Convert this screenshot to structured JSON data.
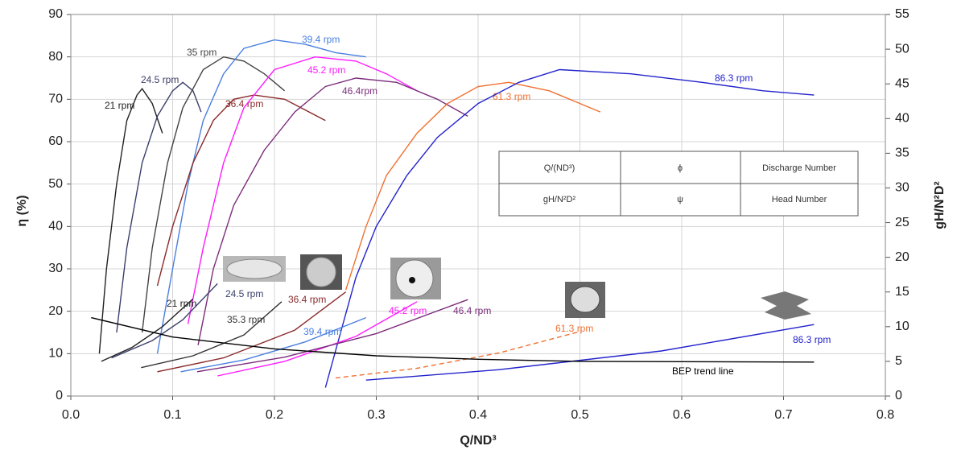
{
  "chart_data": {
    "type": "line",
    "xlabel": "Q/ND³",
    "ylabel": "η (%)",
    "y2label": "gH/N²D²",
    "xlim": [
      0,
      0.8
    ],
    "xticks": [
      {
        "value": 0,
        "label": "0.0"
      },
      0.1,
      0.2,
      0.3,
      0.4,
      0.5,
      0.6,
      0.7,
      0.8
    ],
    "ylim": [
      0,
      90
    ],
    "yticks": [
      0,
      10,
      20,
      30,
      40,
      50,
      60,
      70,
      80,
      90
    ],
    "y2lim": [
      0,
      55
    ],
    "y2ticks": [
      0,
      5,
      10,
      15,
      20,
      25,
      30,
      35,
      40,
      45,
      50,
      55
    ],
    "grid": true,
    "series": [
      {
        "name": "21 rpm",
        "color": "#222222",
        "axis": "y",
        "x": [
          0.028,
          0.035,
          0.045,
          0.055,
          0.065,
          0.07,
          0.08,
          0.09
        ],
        "values": [
          10,
          30,
          50,
          65,
          71,
          72.5,
          69,
          62
        ]
      },
      {
        "name": "24.5  rpm",
        "color": "#3a3f6a",
        "axis": "y",
        "x": [
          0.045,
          0.055,
          0.07,
          0.085,
          0.1,
          0.11,
          0.12,
          0.128
        ],
        "values": [
          15,
          35,
          55,
          66,
          72,
          74,
          72,
          67
        ]
      },
      {
        "name": "35 rpm",
        "color": "#444444",
        "axis": "y",
        "x": [
          0.07,
          0.08,
          0.095,
          0.11,
          0.13,
          0.15,
          0.17,
          0.19,
          0.21
        ],
        "values": [
          15,
          35,
          55,
          68,
          77,
          80,
          79,
          76,
          72
        ]
      },
      {
        "name": "39.4  rpm",
        "color": "#4a7fe0",
        "axis": "y",
        "x": [
          0.085,
          0.1,
          0.115,
          0.13,
          0.15,
          0.17,
          0.2,
          0.23,
          0.26,
          0.29
        ],
        "values": [
          10,
          30,
          50,
          65,
          76,
          82,
          84,
          83,
          81,
          80
        ]
      },
      {
        "name": "36.4  rpm",
        "color": "#8b2a2a",
        "axis": "y",
        "x": [
          0.085,
          0.1,
          0.12,
          0.14,
          0.16,
          0.18,
          0.21,
          0.25
        ],
        "values": [
          26,
          40,
          55,
          65,
          70,
          71,
          70,
          65
        ]
      },
      {
        "name": "45.2 rpm",
        "color": "#ff1aff",
        "axis": "y",
        "x": [
          0.115,
          0.13,
          0.15,
          0.17,
          0.2,
          0.24,
          0.28,
          0.31,
          0.34
        ],
        "values": [
          17,
          35,
          55,
          68,
          77,
          80,
          79,
          76,
          72
        ]
      },
      {
        "name": "46.4rpm",
        "color": "#7b2d7b",
        "axis": "y",
        "x": [
          0.125,
          0.14,
          0.16,
          0.19,
          0.22,
          0.25,
          0.28,
          0.32,
          0.36,
          0.39
        ],
        "values": [
          12,
          30,
          45,
          58,
          67,
          73,
          75,
          74,
          70,
          66
        ]
      },
      {
        "name": "61.3 rpm",
        "color": "#f07030",
        "axis": "y",
        "x": [
          0.27,
          0.29,
          0.31,
          0.34,
          0.37,
          0.4,
          0.43,
          0.47,
          0.52
        ],
        "values": [
          25,
          40,
          52,
          62,
          69,
          73,
          74,
          72,
          67
        ]
      },
      {
        "name": "86.3 rpm",
        "color": "#2222cc",
        "axis": "y",
        "x": [
          0.25,
          0.265,
          0.28,
          0.3,
          0.33,
          0.36,
          0.4,
          0.44,
          0.48,
          0.55,
          0.62,
          0.68,
          0.73
        ],
        "values": [
          2,
          15,
          28,
          40,
          52,
          61,
          69,
          74,
          77,
          76,
          74,
          72,
          71
        ]
      },
      {
        "name": "21 rpm",
        "color": "#222222",
        "axis": "y2",
        "x": [
          0.03,
          0.06,
          0.09,
          0.12
        ],
        "values": [
          5,
          7,
          10,
          14
        ]
      },
      {
        "name": "24.5 rpm",
        "color": "#3a3f6a",
        "axis": "y2",
        "x": [
          0.04,
          0.08,
          0.11,
          0.144
        ],
        "values": [
          5.5,
          8,
          11,
          16.2
        ]
      },
      {
        "name": "35.3 rpm",
        "color": "#333333",
        "axis": "y2",
        "x": [
          0.069,
          0.12,
          0.17,
          0.207
        ],
        "values": [
          4.1,
          5.8,
          8.8,
          13.6
        ]
      },
      {
        "name": "36.4 rpm",
        "color": "#8b2a2a",
        "axis": "y2",
        "x": [
          0.085,
          0.15,
          0.22,
          0.27
        ],
        "values": [
          3.5,
          5.5,
          9.5,
          15
        ]
      },
      {
        "name": "39.4  rpm",
        "color": "#4a7fe0",
        "axis": "y2",
        "x": [
          0.108,
          0.17,
          0.23,
          0.29
        ],
        "values": [
          3.5,
          5.2,
          7.8,
          11.3
        ]
      },
      {
        "name": "45.2 rpm",
        "color": "#ff1aff",
        "axis": "y2",
        "x": [
          0.144,
          0.21,
          0.28,
          0.34
        ],
        "values": [
          2.9,
          5,
          8.6,
          13.6
        ]
      },
      {
        "name": "46.4 rpm",
        "color": "#7b2d7b",
        "axis": "y2",
        "x": [
          0.124,
          0.21,
          0.3,
          0.39
        ],
        "values": [
          3.5,
          5.6,
          9,
          13.9
        ]
      },
      {
        "name": "61.3 rpm",
        "color": "#f07030",
        "axis": "y2",
        "dashed": true,
        "x": [
          0.26,
          0.34,
          0.42,
          0.5
        ],
        "values": [
          2.6,
          4,
          6.2,
          9.3
        ]
      },
      {
        "name": "86.3 rpm",
        "color": "#2222cc",
        "axis": "y2",
        "x": [
          0.29,
          0.42,
          0.58,
          0.73
        ],
        "values": [
          2.3,
          3.8,
          6.5,
          10.3
        ]
      },
      {
        "name": "BEP trend line",
        "color": "#000000",
        "axis": "y2",
        "x": [
          0.02,
          0.1,
          0.2,
          0.3,
          0.4,
          0.5,
          0.73
        ],
        "values": [
          11.3,
          8.5,
          6.8,
          5.8,
          5.3,
          5,
          4.9
        ]
      }
    ],
    "table": {
      "rows": [
        [
          "Q/(ND³)",
          "ϕ",
          "Discharge Number"
        ],
        [
          "gH/N²D²",
          "ψ",
          "Head Number"
        ]
      ]
    }
  }
}
